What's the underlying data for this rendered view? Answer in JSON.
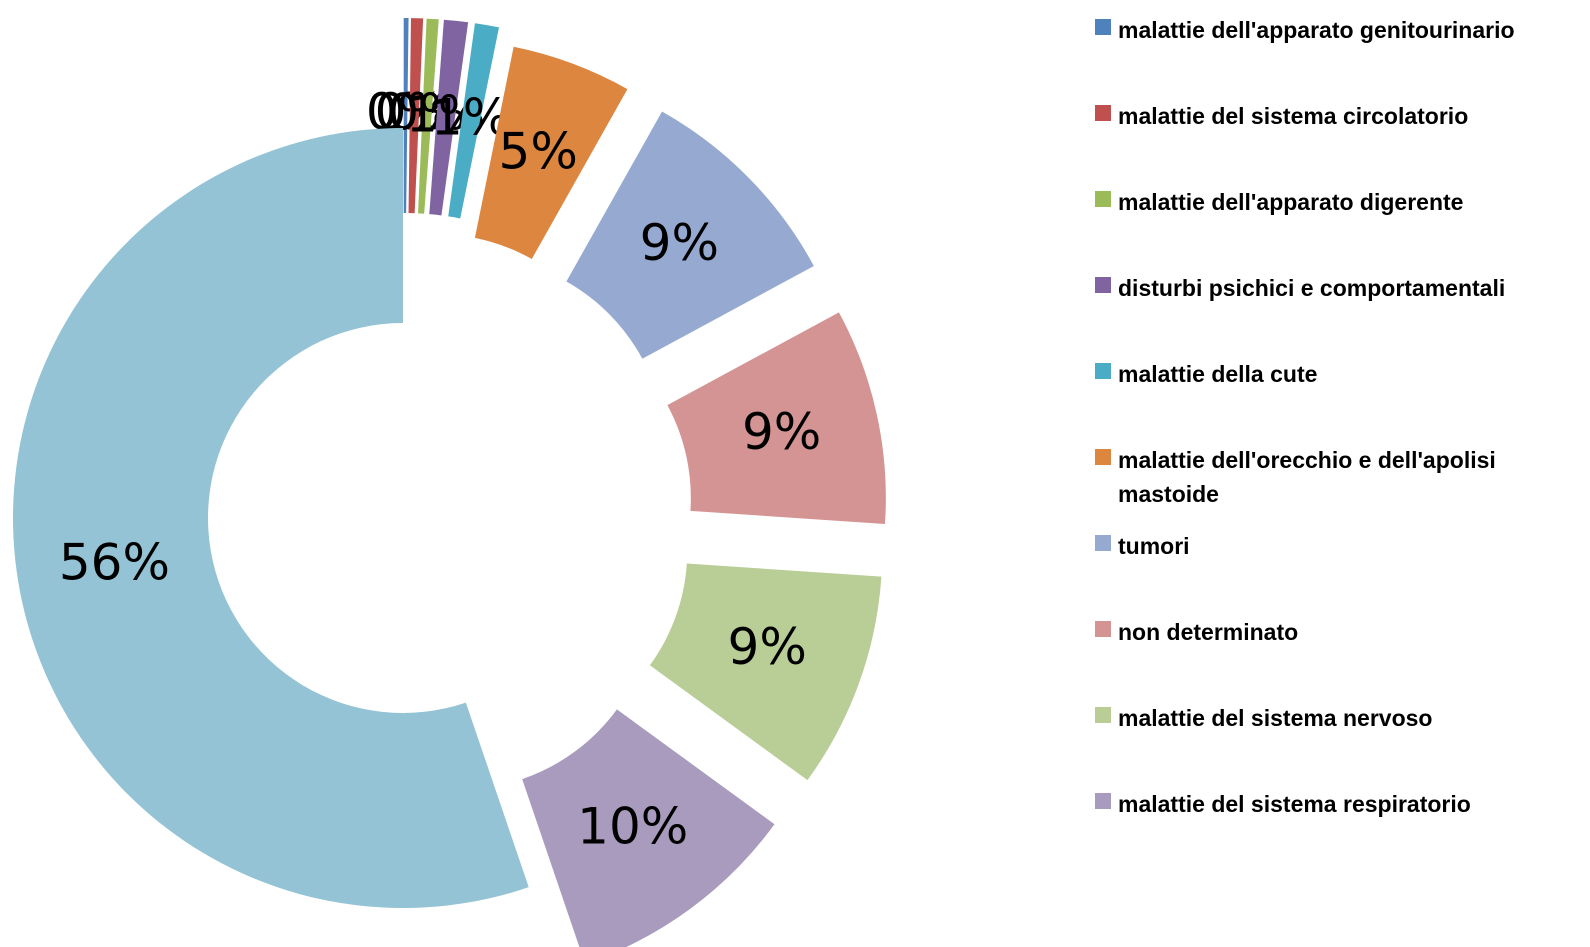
{
  "chart_data": {
    "type": "donut",
    "categories": [
      "malattie dell'apparato genitourinario",
      "malattie del sistema circolatorio",
      "malattie dell'apparato digerente",
      "disturbi psichici e comportamentali",
      "malattie della cute",
      "malattie dell'orecchio e dell'apolisi mastoide",
      "tumori",
      "non determinato",
      "malattie del sistema nervoso",
      "malattie del sistema respiratorio",
      null
    ],
    "values": [
      0.2,
      0.5,
      0.5,
      1,
      1,
      5,
      9,
      9,
      9,
      9.8,
      55.5
    ],
    "value_labels": [
      "0%",
      "0%",
      "0%",
      "1%",
      "1%",
      "5%",
      "9%",
      "9%",
      "9%",
      "10%",
      "56%"
    ],
    "colors": [
      "#4f81bd",
      "#c0504d",
      "#9bbb59",
      "#8064a2",
      "#4bacc6",
      "#dd8640",
      "#95a9d1",
      "#d39493",
      "#b9cd96",
      "#a99bbd",
      "#93c3d4"
    ],
    "legend": "right"
  }
}
